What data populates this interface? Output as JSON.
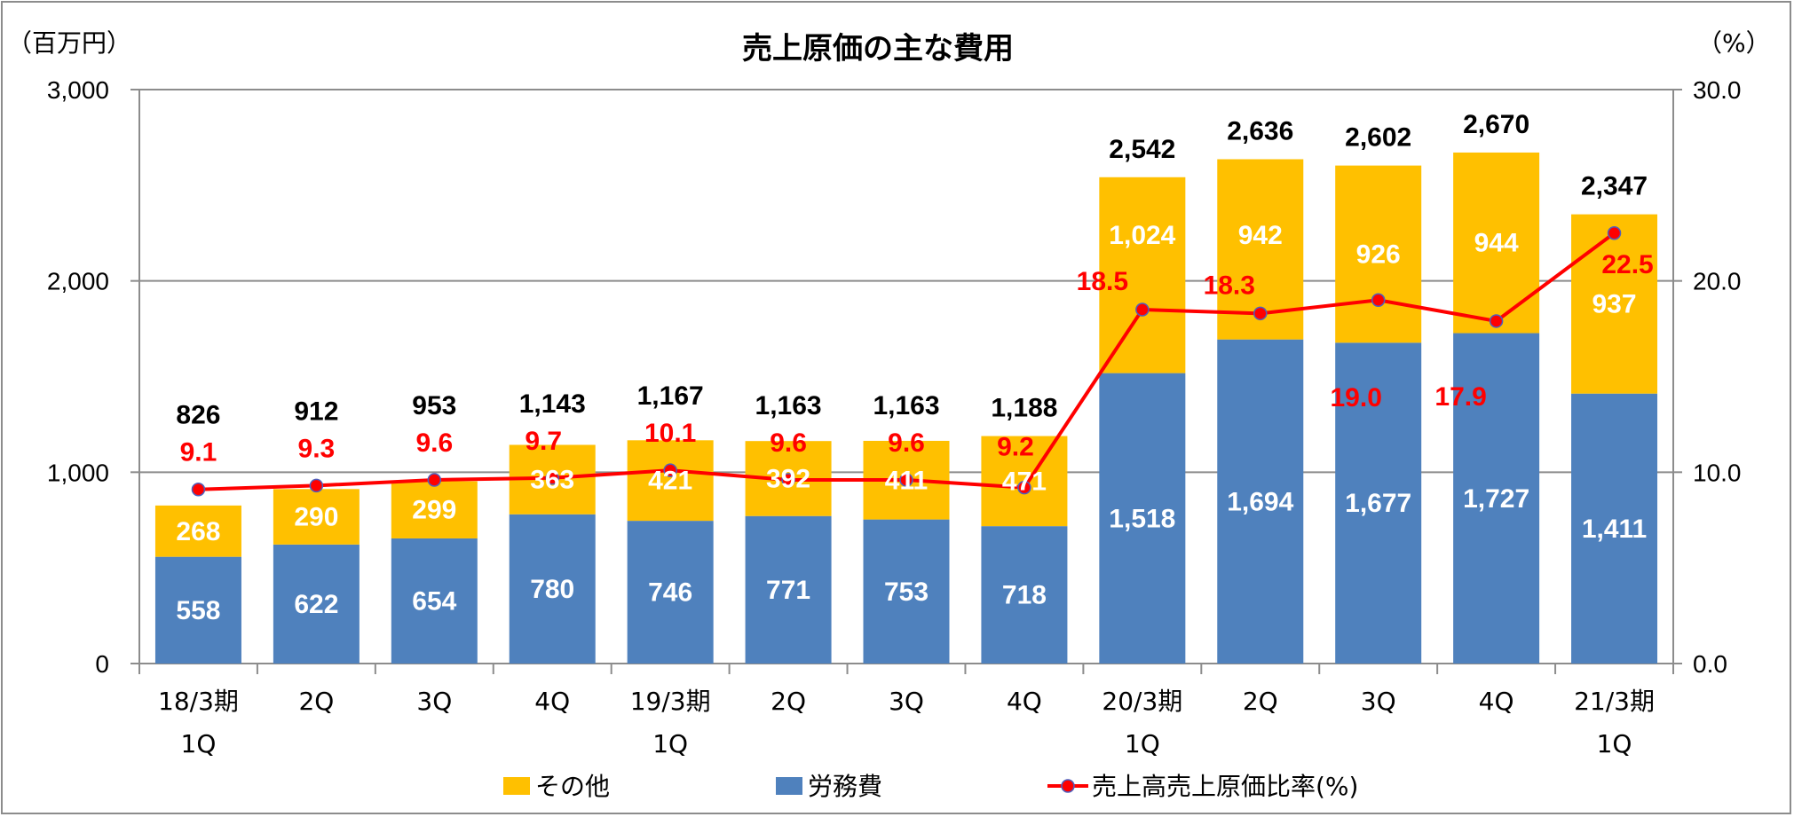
{
  "chart_data": {
    "type": "bar",
    "stacked": true,
    "title": "売上原価の主な費用",
    "ylabel_left": "（百万円）",
    "ylabel_right": "（%）",
    "ylim_left": [
      0,
      3000
    ],
    "ylim_right": [
      0,
      30
    ],
    "yticks_left": [
      "0",
      "1,000",
      "2,000",
      "3,000"
    ],
    "yticks_right": [
      "0.0",
      "10.0",
      "20.0",
      "30.0"
    ],
    "grid": true,
    "legend_placement": "bottom",
    "categories": [
      [
        "18/3期",
        "1Q"
      ],
      [
        "2Q",
        ""
      ],
      [
        "3Q",
        ""
      ],
      [
        "4Q",
        ""
      ],
      [
        "19/3期",
        "1Q"
      ],
      [
        "2Q",
        ""
      ],
      [
        "3Q",
        ""
      ],
      [
        "4Q",
        ""
      ],
      [
        "20/3期",
        "1Q"
      ],
      [
        "2Q",
        ""
      ],
      [
        "3Q",
        ""
      ],
      [
        "4Q",
        ""
      ],
      [
        "21/3期",
        "1Q"
      ]
    ],
    "series": [
      {
        "name": "労務費",
        "type": "bar",
        "color": "#4f81bd",
        "values": [
          558,
          622,
          654,
          780,
          746,
          771,
          753,
          718,
          1518,
          1694,
          1677,
          1727,
          1411
        ],
        "labels": [
          "558",
          "622",
          "654",
          "780",
          "746",
          "771",
          "753",
          "718",
          "1,518",
          "1,694",
          "1,677",
          "1,727",
          "1,411"
        ]
      },
      {
        "name": "その他",
        "type": "bar",
        "color": "#ffc000",
        "values": [
          268,
          290,
          299,
          363,
          421,
          392,
          411,
          471,
          1024,
          942,
          926,
          944,
          937
        ],
        "labels": [
          "268",
          "290",
          "299",
          "363",
          "421",
          "392",
          "411",
          "471",
          "1,024",
          "942",
          "926",
          "944",
          "937"
        ]
      },
      {
        "name": "売上高売上原価比率(%)",
        "type": "line",
        "axis": "right",
        "color": "#ff0000",
        "values": [
          9.1,
          9.3,
          9.6,
          9.7,
          10.1,
          9.6,
          9.6,
          9.2,
          18.5,
          18.3,
          19.0,
          17.9,
          22.5
        ],
        "labels": [
          "9.1",
          "9.3",
          "9.6",
          "9.7",
          "10.1",
          "9.6",
          "9.6",
          "9.2",
          "18.5",
          "18.3",
          "19.0",
          "17.9",
          "22.5"
        ]
      }
    ],
    "totals": [
      826,
      912,
      953,
      1143,
      1167,
      1163,
      1163,
      1188,
      2542,
      2636,
      2602,
      2670,
      2347
    ],
    "total_labels": [
      "826",
      "912",
      "953",
      "1,143",
      "1,167",
      "1,163",
      "1,163",
      "1,188",
      "2,542",
      "2,636",
      "2,602",
      "2,670",
      "2,347"
    ],
    "legend": [
      "その他",
      "労務費",
      "売上高売上原価比率(%)"
    ]
  }
}
